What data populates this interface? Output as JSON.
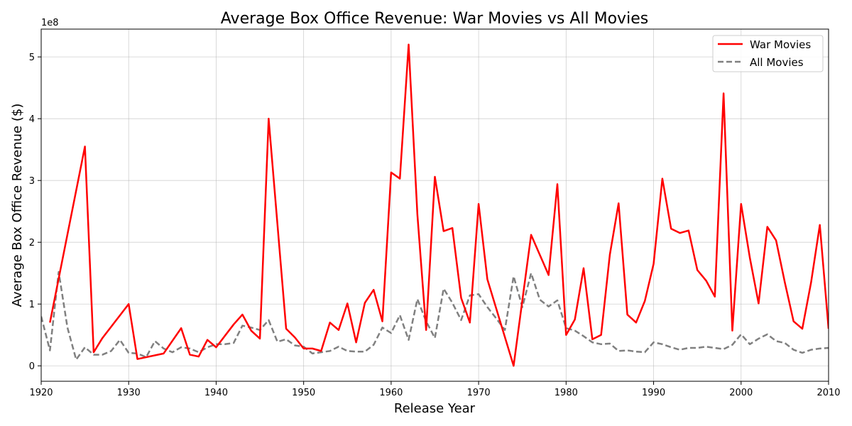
{
  "chart_data": {
    "type": "line",
    "title": "Average Box Office Revenue: War Movies vs All Movies",
    "xlabel": "Release Year",
    "ylabel": "Average Box Office Revenue ($)",
    "y_multiplier_label": "1e8",
    "xlim": [
      1920,
      2010
    ],
    "ylim": [
      -0.25,
      5.45
    ],
    "y_unit": "1e8 dollars",
    "x_ticks": [
      1920,
      1930,
      1940,
      1950,
      1960,
      1970,
      1980,
      1990,
      2000,
      2010
    ],
    "y_ticks": [
      0,
      1,
      2,
      3,
      4,
      5
    ],
    "grid": true,
    "legend_position": "top-right",
    "series": [
      {
        "name": "War Movies",
        "color": "#ff0000",
        "line_style": "solid",
        "points": [
          [
            1921,
            0.7
          ],
          [
            1925,
            3.55
          ],
          [
            1926,
            0.22
          ],
          [
            1927,
            0.45
          ],
          [
            1930,
            1.0
          ],
          [
            1931,
            0.11
          ],
          [
            1934,
            0.2
          ],
          [
            1936,
            0.61
          ],
          [
            1937,
            0.18
          ],
          [
            1938,
            0.15
          ],
          [
            1939,
            0.42
          ],
          [
            1940,
            0.3
          ],
          [
            1942,
            0.67
          ],
          [
            1943,
            0.83
          ],
          [
            1944,
            0.57
          ],
          [
            1945,
            0.44
          ],
          [
            1946,
            4.0
          ],
          [
            1948,
            0.6
          ],
          [
            1949,
            0.46
          ],
          [
            1950,
            0.28
          ],
          [
            1951,
            0.28
          ],
          [
            1952,
            0.24
          ],
          [
            1953,
            0.7
          ],
          [
            1954,
            0.58
          ],
          [
            1955,
            1.01
          ],
          [
            1956,
            0.38
          ],
          [
            1957,
            1.02
          ],
          [
            1958,
            1.23
          ],
          [
            1959,
            0.72
          ],
          [
            1960,
            3.13
          ],
          [
            1961,
            3.03
          ],
          [
            1962,
            5.2
          ],
          [
            1963,
            2.45
          ],
          [
            1964,
            0.58
          ],
          [
            1965,
            3.06
          ],
          [
            1966,
            2.18
          ],
          [
            1967,
            2.23
          ],
          [
            1968,
            1.1
          ],
          [
            1969,
            0.7
          ],
          [
            1970,
            2.62
          ],
          [
            1971,
            1.4
          ],
          [
            1974,
            0.0
          ],
          [
            1976,
            2.12
          ],
          [
            1978,
            1.47
          ],
          [
            1979,
            2.94
          ],
          [
            1980,
            0.5
          ],
          [
            1981,
            0.75
          ],
          [
            1982,
            1.58
          ],
          [
            1983,
            0.43
          ],
          [
            1984,
            0.5
          ],
          [
            1985,
            1.8
          ],
          [
            1986,
            2.63
          ],
          [
            1987,
            0.83
          ],
          [
            1988,
            0.7
          ],
          [
            1989,
            1.05
          ],
          [
            1990,
            1.65
          ],
          [
            1991,
            3.03
          ],
          [
            1992,
            2.22
          ],
          [
            1993,
            2.15
          ],
          [
            1994,
            2.19
          ],
          [
            1995,
            1.55
          ],
          [
            1996,
            1.38
          ],
          [
            1997,
            1.12
          ],
          [
            1998,
            4.41
          ],
          [
            1999,
            0.57
          ],
          [
            2000,
            2.62
          ],
          [
            2001,
            1.75
          ],
          [
            2002,
            1.01
          ],
          [
            2003,
            2.25
          ],
          [
            2004,
            2.03
          ],
          [
            2005,
            1.35
          ],
          [
            2006,
            0.72
          ],
          [
            2007,
            0.6
          ],
          [
            2008,
            1.35
          ],
          [
            2009,
            2.28
          ],
          [
            2010,
            0.6
          ]
        ]
      },
      {
        "name": "All Movies",
        "color": "#808080",
        "line_style": "dashed",
        "points": [
          [
            1920,
            0.8
          ],
          [
            1921,
            0.25
          ],
          [
            1922,
            1.52
          ],
          [
            1923,
            0.62
          ],
          [
            1924,
            0.1
          ],
          [
            1925,
            0.3
          ],
          [
            1926,
            0.18
          ],
          [
            1927,
            0.18
          ],
          [
            1928,
            0.24
          ],
          [
            1929,
            0.42
          ],
          [
            1930,
            0.21
          ],
          [
            1931,
            0.2
          ],
          [
            1932,
            0.14
          ],
          [
            1933,
            0.4
          ],
          [
            1934,
            0.28
          ],
          [
            1935,
            0.22
          ],
          [
            1936,
            0.3
          ],
          [
            1937,
            0.28
          ],
          [
            1938,
            0.22
          ],
          [
            1939,
            0.3
          ],
          [
            1940,
            0.35
          ],
          [
            1941,
            0.35
          ],
          [
            1942,
            0.37
          ],
          [
            1943,
            0.65
          ],
          [
            1944,
            0.62
          ],
          [
            1945,
            0.58
          ],
          [
            1946,
            0.74
          ],
          [
            1947,
            0.39
          ],
          [
            1948,
            0.43
          ],
          [
            1949,
            0.33
          ],
          [
            1950,
            0.31
          ],
          [
            1951,
            0.2
          ],
          [
            1952,
            0.22
          ],
          [
            1953,
            0.24
          ],
          [
            1954,
            0.31
          ],
          [
            1955,
            0.24
          ],
          [
            1956,
            0.23
          ],
          [
            1957,
            0.23
          ],
          [
            1958,
            0.34
          ],
          [
            1959,
            0.62
          ],
          [
            1960,
            0.53
          ],
          [
            1961,
            0.82
          ],
          [
            1962,
            0.42
          ],
          [
            1963,
            1.08
          ],
          [
            1964,
            0.72
          ],
          [
            1965,
            0.45
          ],
          [
            1966,
            1.25
          ],
          [
            1967,
            1.02
          ],
          [
            1968,
            0.74
          ],
          [
            1969,
            1.14
          ],
          [
            1970,
            1.16
          ],
          [
            1971,
            0.95
          ],
          [
            1972,
            0.77
          ],
          [
            1973,
            0.58
          ],
          [
            1974,
            1.45
          ],
          [
            1975,
            0.95
          ],
          [
            1976,
            1.5
          ],
          [
            1977,
            1.07
          ],
          [
            1978,
            0.96
          ],
          [
            1979,
            1.06
          ],
          [
            1980,
            0.61
          ],
          [
            1981,
            0.57
          ],
          [
            1982,
            0.48
          ],
          [
            1983,
            0.38
          ],
          [
            1984,
            0.35
          ],
          [
            1985,
            0.36
          ],
          [
            1986,
            0.24
          ],
          [
            1987,
            0.25
          ],
          [
            1988,
            0.23
          ],
          [
            1989,
            0.22
          ],
          [
            1990,
            0.38
          ],
          [
            1991,
            0.35
          ],
          [
            1992,
            0.3
          ],
          [
            1993,
            0.26
          ],
          [
            1994,
            0.29
          ],
          [
            1995,
            0.29
          ],
          [
            1996,
            0.31
          ],
          [
            1997,
            0.29
          ],
          [
            1998,
            0.27
          ],
          [
            1999,
            0.34
          ],
          [
            2000,
            0.51
          ],
          [
            2001,
            0.35
          ],
          [
            2002,
            0.44
          ],
          [
            2003,
            0.51
          ],
          [
            2004,
            0.4
          ],
          [
            2005,
            0.37
          ],
          [
            2006,
            0.26
          ],
          [
            2007,
            0.21
          ],
          [
            2008,
            0.26
          ],
          [
            2009,
            0.28
          ],
          [
            2010,
            0.29
          ]
        ]
      }
    ]
  }
}
